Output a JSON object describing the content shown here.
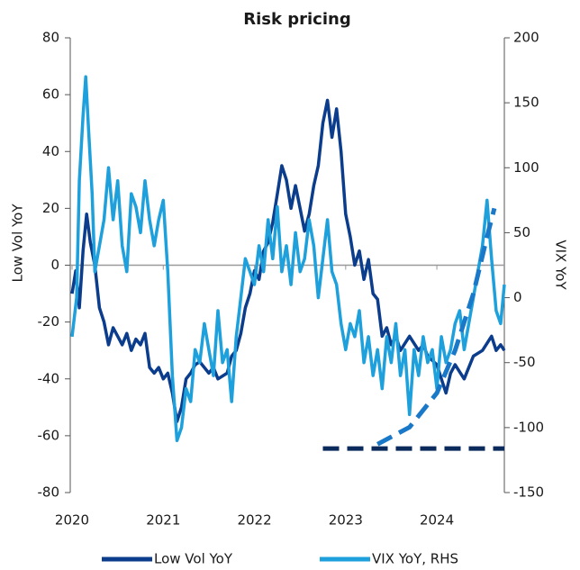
{
  "chart_data": {
    "type": "line",
    "title": "Risk pricing",
    "ylabel": "Low Vol YoY",
    "y2label": "VIX YoY",
    "xlim": [
      2019.98,
      2024.74
    ],
    "xticks": [
      2020,
      2021,
      2022,
      2023,
      2024
    ],
    "ylim": [
      -80,
      80
    ],
    "yticks": [
      -80,
      -60,
      -40,
      -20,
      0,
      20,
      40,
      60,
      80
    ],
    "y2lim": [
      -150,
      200
    ],
    "y2ticks": [
      -150,
      -100,
      -50,
      0,
      50,
      100,
      150,
      200
    ],
    "legend": "bottom",
    "series": [
      {
        "name": "Low Vol YoY",
        "color": "#0b3d8c",
        "axis": "y",
        "x": [
          2020.0,
          2020.04,
          2020.08,
          2020.12,
          2020.16,
          2020.2,
          2020.25,
          2020.3,
          2020.35,
          2020.4,
          2020.45,
          2020.5,
          2020.55,
          2020.6,
          2020.65,
          2020.7,
          2020.75,
          2020.8,
          2020.85,
          2020.9,
          2020.95,
          2021.0,
          2021.05,
          2021.1,
          2021.15,
          2021.2,
          2021.25,
          2021.3,
          2021.35,
          2021.4,
          2021.5,
          2021.55,
          2021.6,
          2021.7,
          2021.75,
          2021.8,
          2021.85,
          2021.9,
          2021.95,
          2022.0,
          2022.05,
          2022.1,
          2022.15,
          2022.2,
          2022.25,
          2022.3,
          2022.35,
          2022.4,
          2022.45,
          2022.5,
          2022.55,
          2022.6,
          2022.65,
          2022.7,
          2022.75,
          2022.8,
          2022.85,
          2022.9,
          2022.95,
          2023.0,
          2023.05,
          2023.1,
          2023.15,
          2023.2,
          2023.25,
          2023.3,
          2023.35,
          2023.4,
          2023.45,
          2023.5,
          2023.55,
          2023.6,
          2023.7,
          2023.8,
          2023.85,
          2023.9,
          2024.0,
          2024.05,
          2024.1,
          2024.15,
          2024.2,
          2024.3,
          2024.4,
          2024.5,
          2024.6,
          2024.65,
          2024.7,
          2024.74
        ],
        "values": [
          -10,
          -2,
          -15,
          5,
          18,
          8,
          0,
          -15,
          -20,
          -28,
          -22,
          -25,
          -28,
          -24,
          -30,
          -26,
          -28,
          -24,
          -36,
          -38,
          -36,
          -40,
          -38,
          -45,
          -55,
          -50,
          -40,
          -38,
          -35,
          -34,
          -38,
          -36,
          -40,
          -38,
          -32,
          -30,
          -24,
          -15,
          -10,
          -2,
          -5,
          5,
          8,
          15,
          25,
          35,
          30,
          20,
          28,
          20,
          12,
          18,
          28,
          35,
          50,
          58,
          45,
          55,
          40,
          18,
          10,
          0,
          5,
          -5,
          2,
          -10,
          -12,
          -25,
          -22,
          -28,
          -25,
          -30,
          -25,
          -30,
          -28,
          -32,
          -35,
          -40,
          -45,
          -38,
          -35,
          -40,
          -32,
          -30,
          -25,
          -30,
          -28,
          -30
        ]
      },
      {
        "name": "VIX YoY, RHS",
        "color": "#1ea0dc",
        "axis": "y2",
        "x": [
          2020.0,
          2020.05,
          2020.08,
          2020.12,
          2020.15,
          2020.18,
          2020.22,
          2020.25,
          2020.3,
          2020.35,
          2020.4,
          2020.45,
          2020.5,
          2020.55,
          2020.6,
          2020.65,
          2020.7,
          2020.75,
          2020.8,
          2020.85,
          2020.9,
          2020.95,
          2021.0,
          2021.05,
          2021.1,
          2021.15,
          2021.2,
          2021.25,
          2021.3,
          2021.35,
          2021.4,
          2021.45,
          2021.5,
          2021.55,
          2021.6,
          2021.65,
          2021.7,
          2021.75,
          2021.8,
          2021.85,
          2021.9,
          2021.95,
          2022.0,
          2022.05,
          2022.1,
          2022.15,
          2022.2,
          2022.25,
          2022.3,
          2022.35,
          2022.4,
          2022.45,
          2022.5,
          2022.55,
          2022.6,
          2022.65,
          2022.7,
          2022.75,
          2022.8,
          2022.85,
          2022.9,
          2022.95,
          2023.0,
          2023.05,
          2023.1,
          2023.15,
          2023.2,
          2023.25,
          2023.3,
          2023.35,
          2023.4,
          2023.45,
          2023.5,
          2023.55,
          2023.6,
          2023.65,
          2023.7,
          2023.75,
          2023.8,
          2023.85,
          2023.9,
          2023.95,
          2024.0,
          2024.05,
          2024.1,
          2024.15,
          2024.2,
          2024.25,
          2024.3,
          2024.35,
          2024.4,
          2024.45,
          2024.5,
          2024.55,
          2024.6,
          2024.65,
          2024.7,
          2024.74
        ],
        "values": [
          -30,
          0,
          90,
          140,
          170,
          130,
          80,
          20,
          40,
          60,
          100,
          60,
          90,
          40,
          20,
          80,
          70,
          50,
          90,
          60,
          40,
          60,
          75,
          20,
          -60,
          -110,
          -100,
          -70,
          -80,
          -40,
          -50,
          -20,
          -40,
          -60,
          -10,
          -50,
          -40,
          -80,
          -30,
          0,
          30,
          20,
          10,
          40,
          20,
          60,
          30,
          70,
          20,
          40,
          10,
          50,
          20,
          30,
          60,
          40,
          0,
          30,
          60,
          20,
          10,
          -20,
          -40,
          -20,
          -30,
          -10,
          -50,
          -30,
          -60,
          -40,
          -70,
          -30,
          -50,
          -20,
          -60,
          -40,
          -90,
          -40,
          -60,
          -30,
          -50,
          -40,
          -70,
          -30,
          -50,
          -40,
          -20,
          -10,
          -40,
          -20,
          0,
          20,
          40,
          75,
          30,
          -10,
          -20,
          10
        ]
      }
    ],
    "trend_lines": [
      {
        "color": "#0b2a5c",
        "x": [
          2022.75,
          2024.74
        ],
        "values": [
          -64.5,
          -64.5
        ]
      },
      {
        "color": "#1a78c8",
        "x": [
          2023.35,
          2023.7,
          2024.0,
          2024.2,
          2024.4,
          2024.55,
          2024.63
        ],
        "values": [
          -63,
          -57,
          -45,
          -30,
          -10,
          10,
          20
        ]
      }
    ]
  }
}
